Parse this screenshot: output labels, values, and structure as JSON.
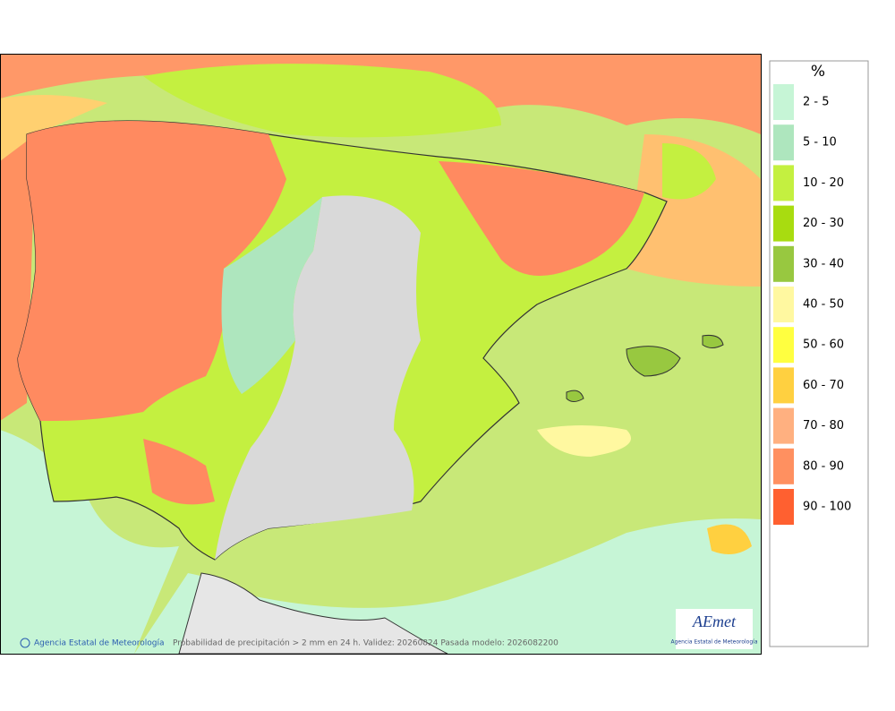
{
  "legend": {
    "title": "%",
    "items": [
      {
        "label": "2 - 5",
        "color": "#c6f5d6"
      },
      {
        "label": "5 - 10",
        "color": "#aee6be"
      },
      {
        "label": "10 - 20",
        "color": "#c4f040"
      },
      {
        "label": "20 - 30",
        "color": "#a8dc10"
      },
      {
        "label": "30 - 40",
        "color": "#98c840"
      },
      {
        "label": "40 - 50",
        "color": "#fff8a0"
      },
      {
        "label": "50 - 60",
        "color": "#ffff40"
      },
      {
        "label": "60 - 70",
        "color": "#ffd040"
      },
      {
        "label": "70 - 80",
        "color": "#ffb080"
      },
      {
        "label": "80 - 90",
        "color": "#ff9060"
      },
      {
        "label": "90 - 100",
        "color": "#ff6030"
      }
    ]
  },
  "footer": {
    "credit": "Agencia Estatal de Meteorología",
    "caption": "Probabilidad de precipitación > 2 mm en 24 h. Validez: 20260824 Pasada modelo: 2026082200"
  },
  "logo": {
    "name": "AEmet",
    "subtitle": "Agencia Estatal de Meteorología"
  }
}
